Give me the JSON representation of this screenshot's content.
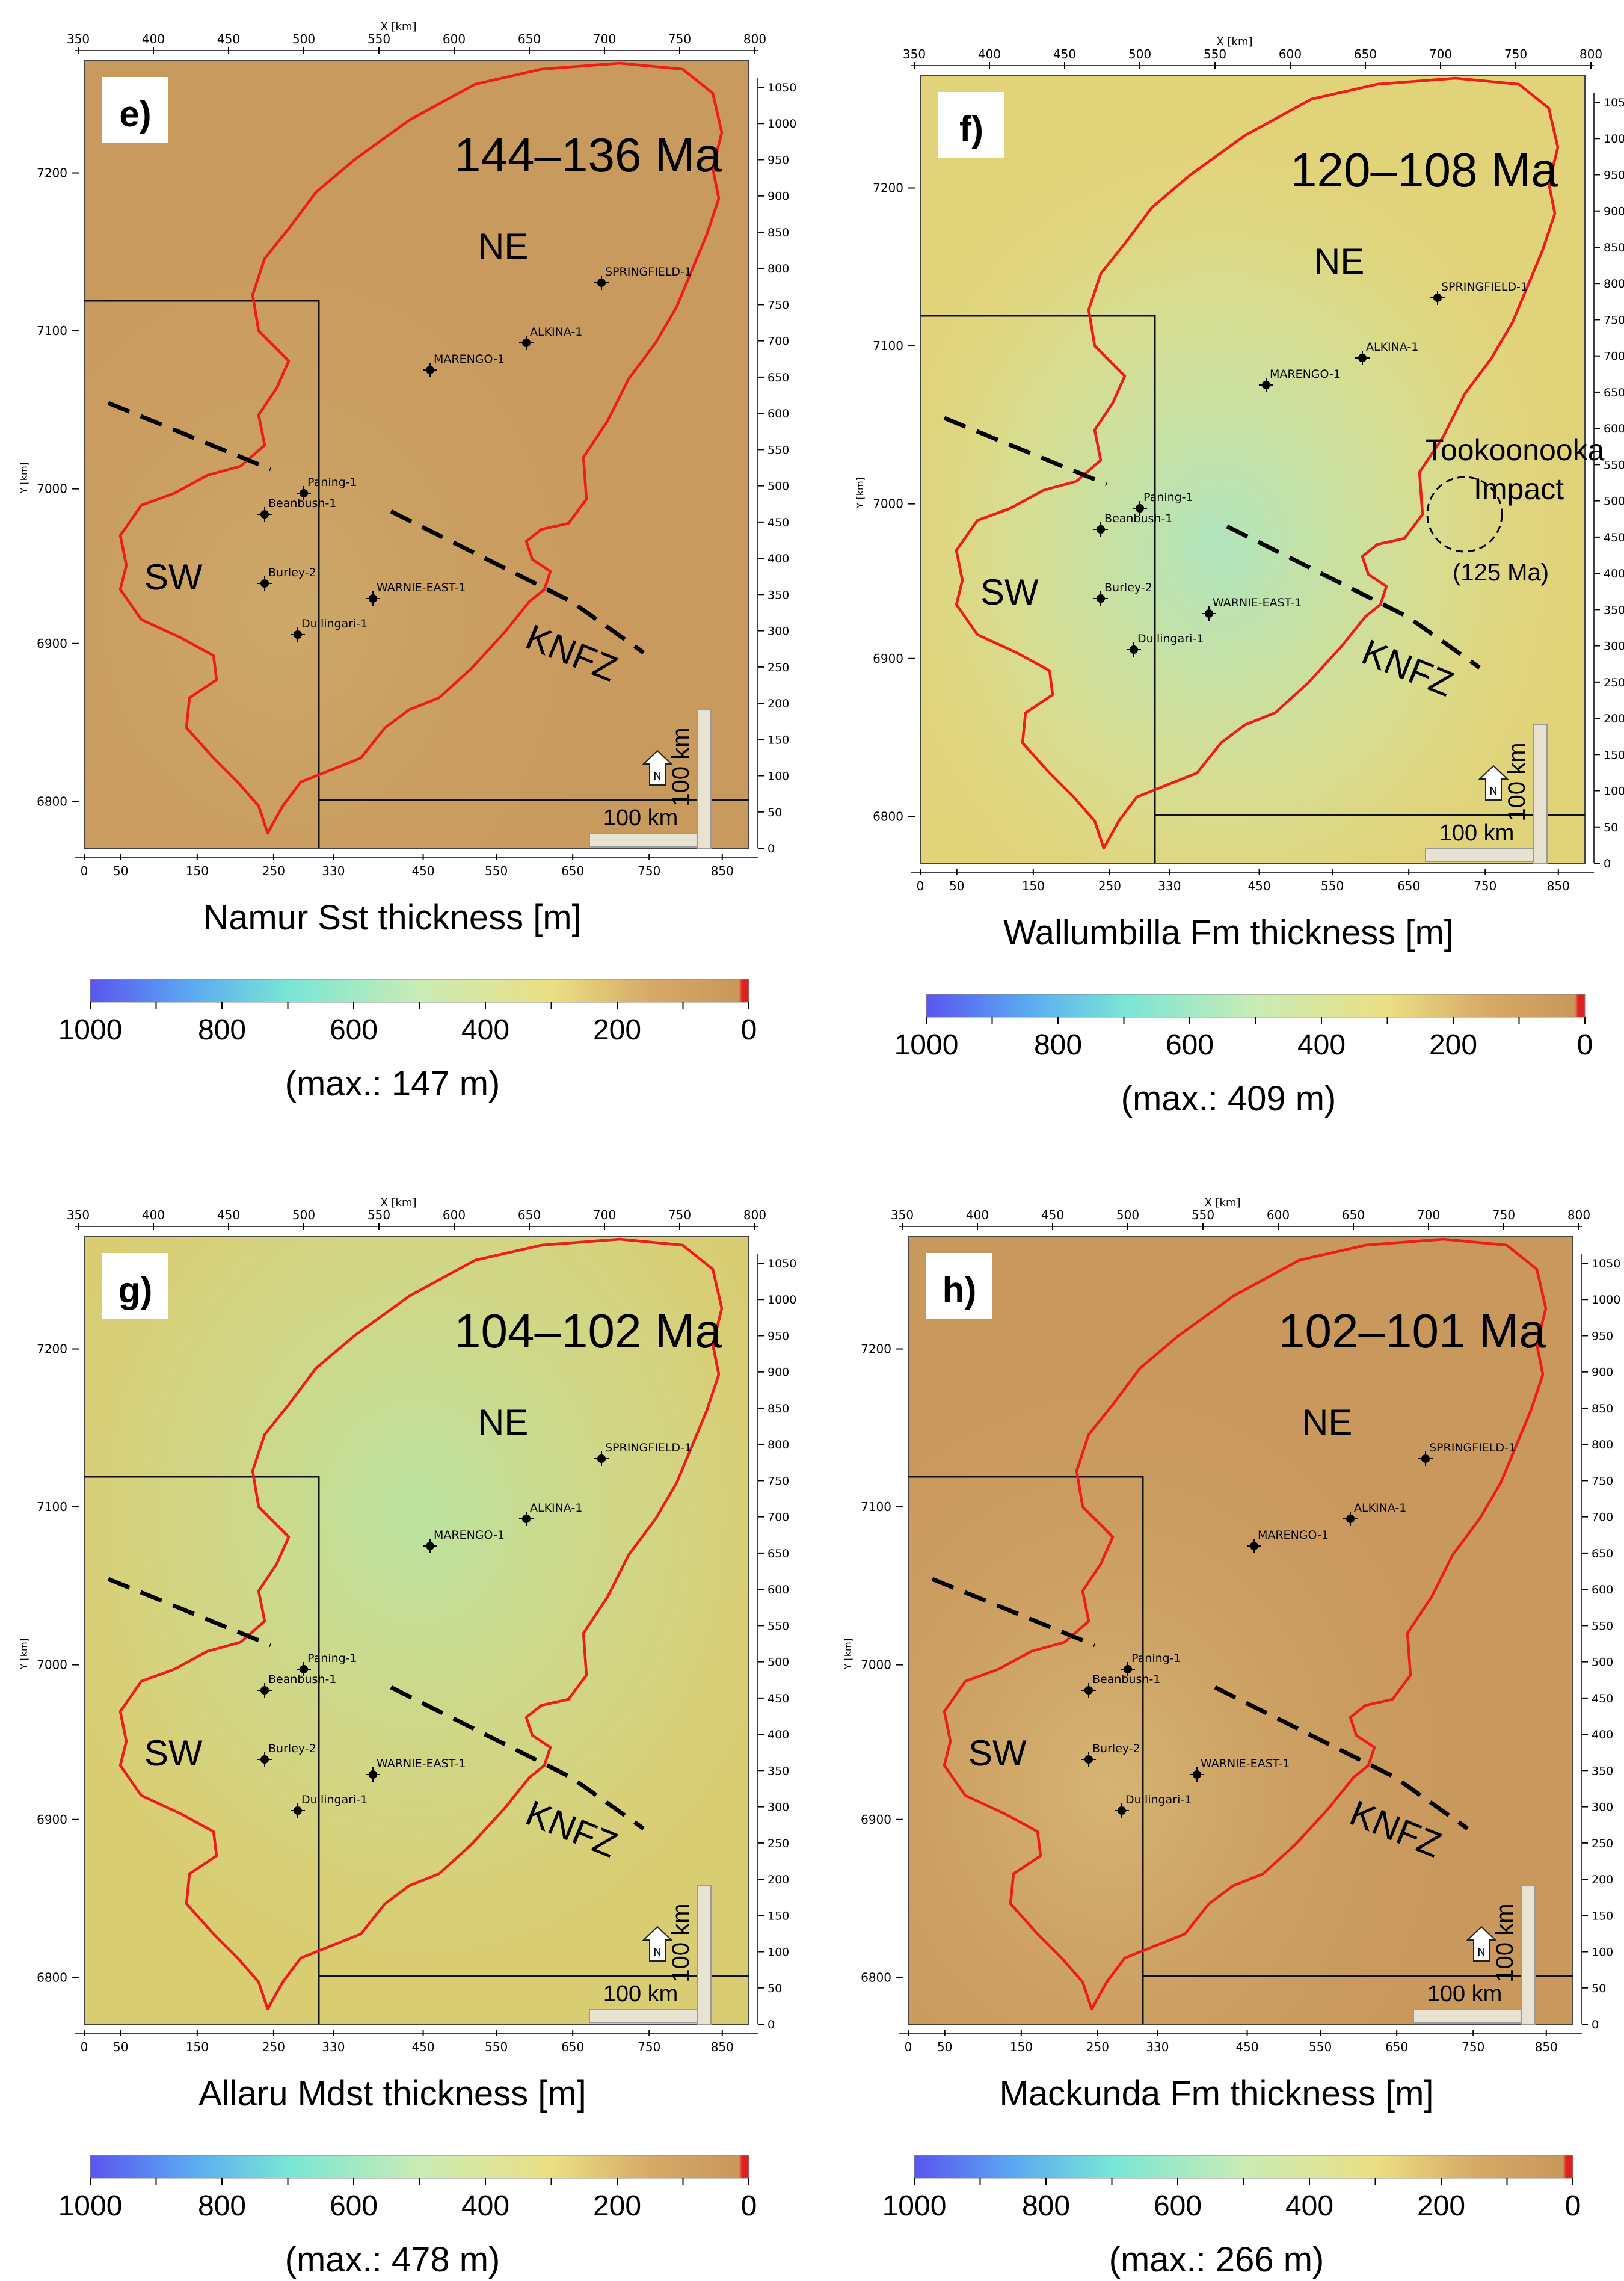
{
  "axis": {
    "x_unit_label": "X [km]",
    "y_unit_label": "Y [km]",
    "x_top_ticks": [
      "350",
      "400",
      "450",
      "500",
      "550",
      "600",
      "650",
      "700",
      "750",
      "800"
    ],
    "x_bottom_ticks": [
      "0",
      "50",
      "150",
      "250",
      "330",
      "450",
      "550",
      "650",
      "750",
      "850"
    ],
    "y_left_ticks": [
      "7200",
      "7100",
      "7000",
      "6900",
      "6800"
    ],
    "y_right_ticks": [
      "1050",
      "1000",
      "950",
      "900",
      "850",
      "800",
      "750",
      "700",
      "650",
      "600",
      "550",
      "500",
      "450",
      "400",
      "350",
      "300",
      "250",
      "200",
      "150",
      "100",
      "50",
      "0"
    ]
  },
  "colorbar": {
    "tick_labels": [
      "1000",
      "800",
      "600",
      "400",
      "200",
      "0"
    ]
  },
  "panels": [
    {
      "letter": "e)",
      "age": "144–136 Ma",
      "variable": "Namur Sst thickness [m]",
      "max_label": "(max.: 147 m)",
      "background_color": "#c99a5e",
      "regions": [
        "NE",
        "SW",
        "KNFZ"
      ],
      "scale_bar": "100 km",
      "north_label": "N",
      "wells": [
        "SPRINGFIELD-1",
        "ALKINA-1",
        "MARENGO-1",
        "Paning-1",
        "Beanbush-1",
        "Burley-2",
        "WARNIE-EAST-1",
        "Dullingari-1"
      ]
    },
    {
      "letter": "f)",
      "age": "120–108 Ma",
      "variable": "Wallumbilla Fm thickness [m]",
      "max_label": "(max.: 409 m)",
      "background_color": "#e1d37a",
      "regions": [
        "NE",
        "SW",
        "KNFZ"
      ],
      "impact_label_1": "Tookoonooka",
      "impact_label_2": "Impact",
      "impact_age": "(125 Ma)",
      "scale_bar": "100 km",
      "north_label": "N",
      "wells": [
        "SPRINGFIELD-1",
        "ALKINA-1",
        "MARENGO-1",
        "Paning-1",
        "Beanbush-1",
        "Burley-2",
        "WARNIE-EAST-1",
        "Dullingari-1"
      ]
    },
    {
      "letter": "g)",
      "age": "104–102 Ma",
      "variable": "Allaru Mdst thickness [m]",
      "max_label": "(max.: 478 m)",
      "background_color": "#d9cd74",
      "regions": [
        "NE",
        "SW",
        "KNFZ"
      ],
      "scale_bar": "100 km",
      "north_label": "N",
      "wells": [
        "SPRINGFIELD-1",
        "ALKINA-1",
        "MARENGO-1",
        "Paning-1",
        "Beanbush-1",
        "Burley-2",
        "WARNIE-EAST-1",
        "Dullingari-1"
      ]
    },
    {
      "letter": "h)",
      "age": "102–101 Ma",
      "variable": "Mackunda Fm thickness [m]",
      "max_label": "(max.: 266 m)",
      "background_color": "#c9985c",
      "regions": [
        "NE",
        "SW",
        "KNFZ"
      ],
      "scale_bar": "100 km",
      "north_label": "N",
      "wells": [
        "SPRINGFIELD-1",
        "ALKINA-1",
        "MARENGO-1",
        "Paning-1",
        "Beanbush-1",
        "Burley-2",
        "WARNIE-EAST-1",
        "Dullingari-1"
      ]
    }
  ]
}
